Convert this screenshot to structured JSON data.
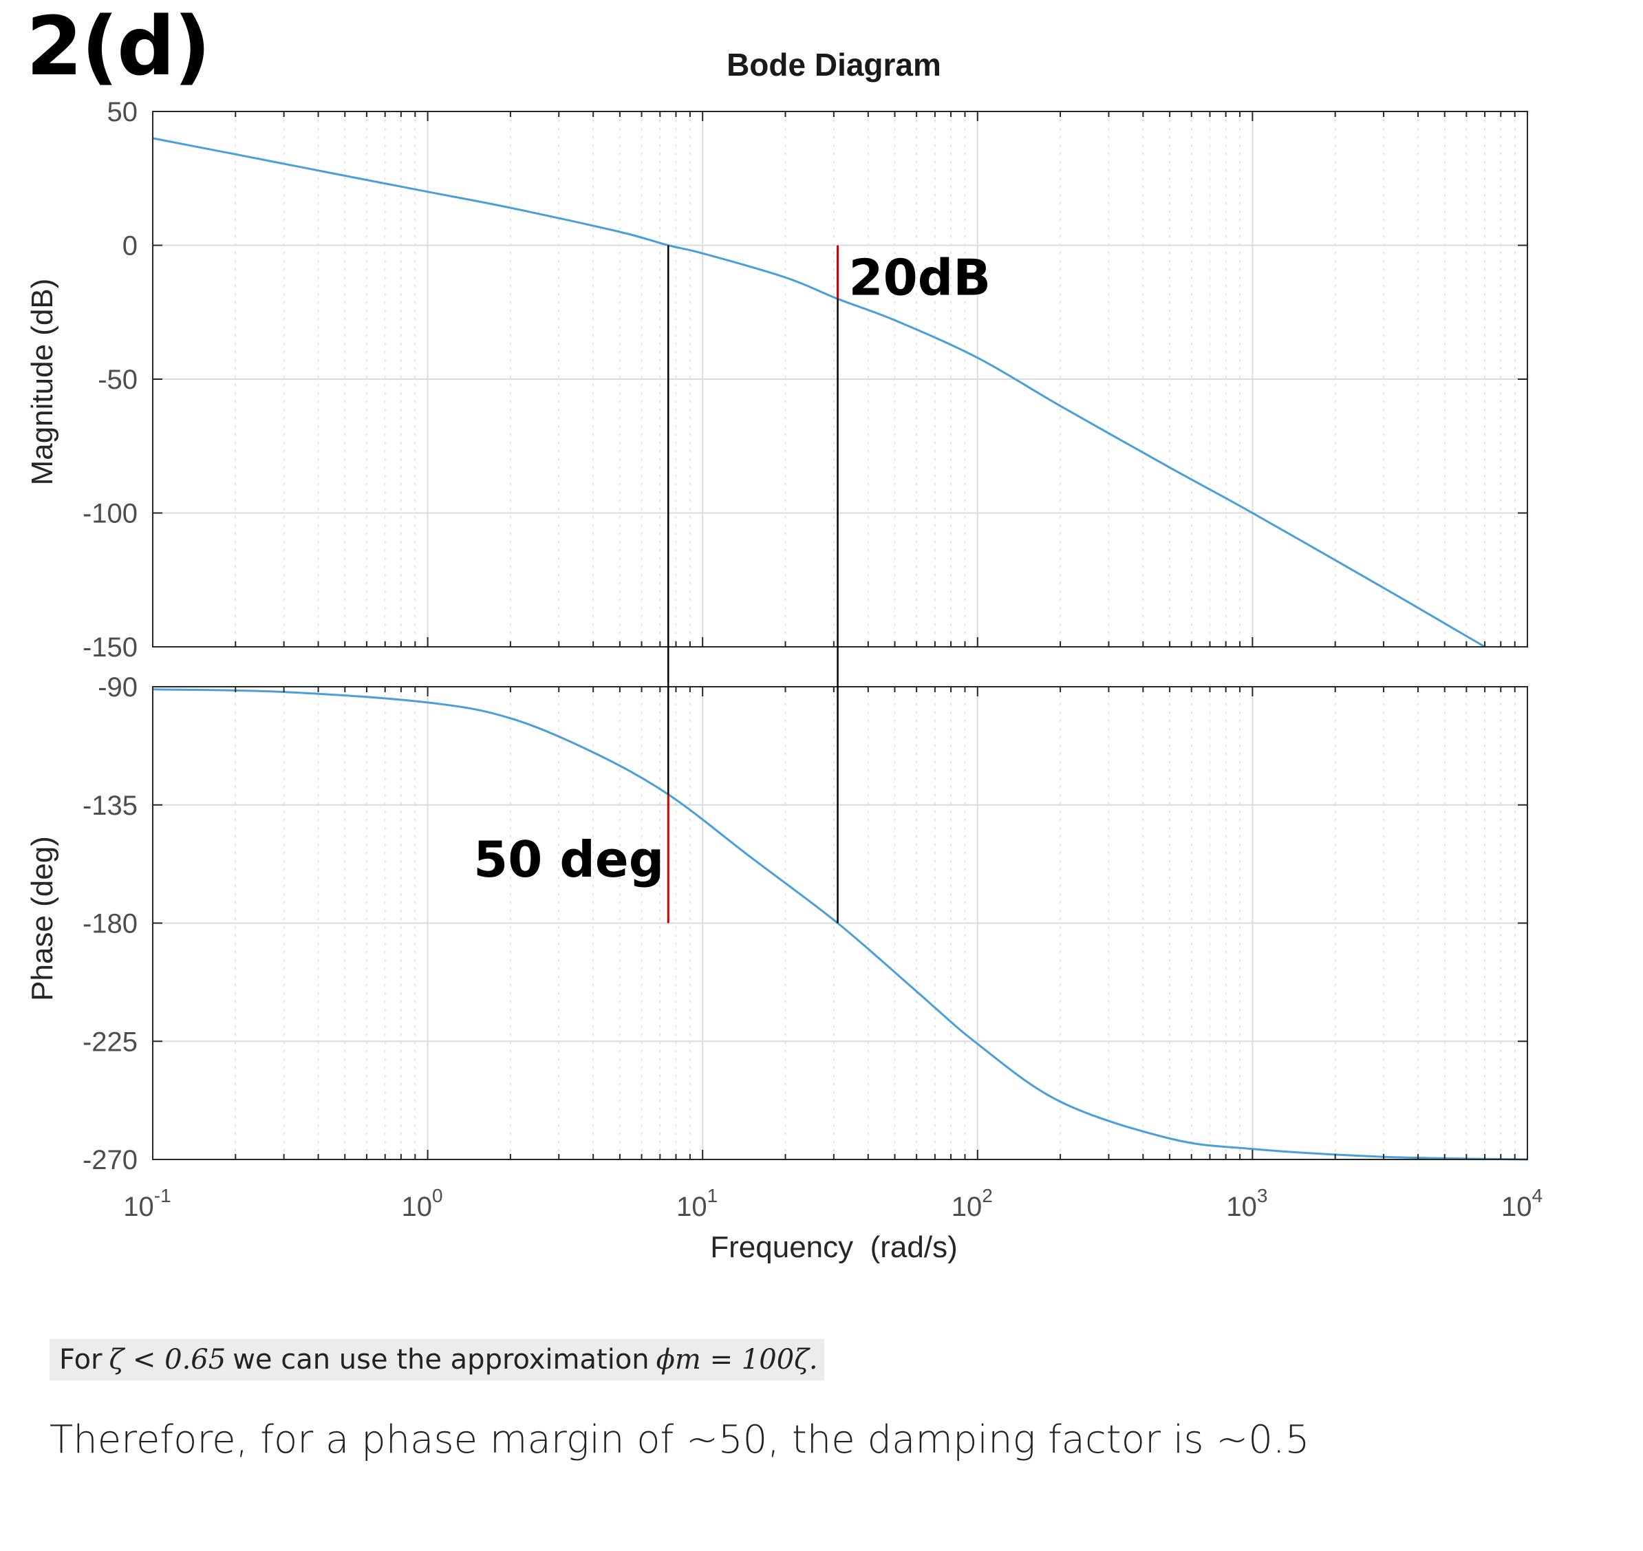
{
  "heading": "2(d)",
  "chart_data": {
    "type": "line",
    "title": "Bode Diagram",
    "xlabel": "Frequency  (rad/s)",
    "x_scale": "log",
    "xlim": [
      0.1,
      10000
    ],
    "x_ticks": [
      {
        "base": "10",
        "exp": "-1"
      },
      {
        "base": "10",
        "exp": "0"
      },
      {
        "base": "10",
        "exp": "1"
      },
      {
        "base": "10",
        "exp": "2"
      },
      {
        "base": "10",
        "exp": "3"
      },
      {
        "base": "10",
        "exp": "4"
      }
    ],
    "grid": true,
    "series_color": "#4a9fd8",
    "panels": [
      {
        "name": "magnitude",
        "ylabel": "Magnitude (dB)",
        "ylim": [
          -150,
          50
        ],
        "y_ticks": [
          "50",
          "0",
          "-50",
          "-100",
          "-150"
        ],
        "points": [
          {
            "x": 0.1,
            "y": 40
          },
          {
            "x": 0.2,
            "y": 34
          },
          {
            "x": 0.5,
            "y": 26
          },
          {
            "x": 1,
            "y": 20
          },
          {
            "x": 2,
            "y": 14
          },
          {
            "x": 5,
            "y": 5
          },
          {
            "x": 7.5,
            "y": 0
          },
          {
            "x": 10,
            "y": -3
          },
          {
            "x": 20,
            "y": -12
          },
          {
            "x": 31,
            "y": -20
          },
          {
            "x": 50,
            "y": -28
          },
          {
            "x": 100,
            "y": -42
          },
          {
            "x": 200,
            "y": -60
          },
          {
            "x": 500,
            "y": -83
          },
          {
            "x": 1000,
            "y": -100
          },
          {
            "x": 3000,
            "y": -128
          },
          {
            "x": 7000,
            "y": -150
          }
        ]
      },
      {
        "name": "phase",
        "ylabel": "Phase (deg)",
        "ylim": [
          -270,
          -90
        ],
        "y_ticks": [
          "-90",
          "-135",
          "-180",
          "-225",
          "-270"
        ],
        "points": [
          {
            "x": 0.1,
            "y": -91
          },
          {
            "x": 0.3,
            "y": -92
          },
          {
            "x": 1,
            "y": -96
          },
          {
            "x": 2,
            "y": -102
          },
          {
            "x": 4,
            "y": -115
          },
          {
            "x": 7.5,
            "y": -131
          },
          {
            "x": 15,
            "y": -155
          },
          {
            "x": 31,
            "y": -180
          },
          {
            "x": 60,
            "y": -206
          },
          {
            "x": 100,
            "y": -226
          },
          {
            "x": 200,
            "y": -248
          },
          {
            "x": 500,
            "y": -262
          },
          {
            "x": 1000,
            "y": -266
          },
          {
            "x": 3000,
            "y": -269
          },
          {
            "x": 10000,
            "y": -270
          }
        ]
      }
    ],
    "annotations": [
      {
        "text": "20dB",
        "x": 31,
        "panel": "magnitude",
        "from": -20,
        "to": 0,
        "color": "#cc0000"
      },
      {
        "text": "50 deg",
        "x": 7.5,
        "panel": "phase",
        "from": -180,
        "to": -131,
        "color": "#cc0000"
      }
    ],
    "crossover_lines": [
      {
        "x": 7.5,
        "from_mag": 0,
        "to_phase": -131,
        "color": "#000000"
      },
      {
        "x": 31,
        "from_mag": -20,
        "to_phase": -180,
        "color": "#000000"
      }
    ]
  },
  "note": {
    "prefix": "For",
    "condition": "ζ < 0.65",
    "middle": "we can use the approximation",
    "formula": "ϕm = 100ζ."
  },
  "conclusion": "Therefore, for a phase margin of ~50, the damping factor is ~0.5"
}
